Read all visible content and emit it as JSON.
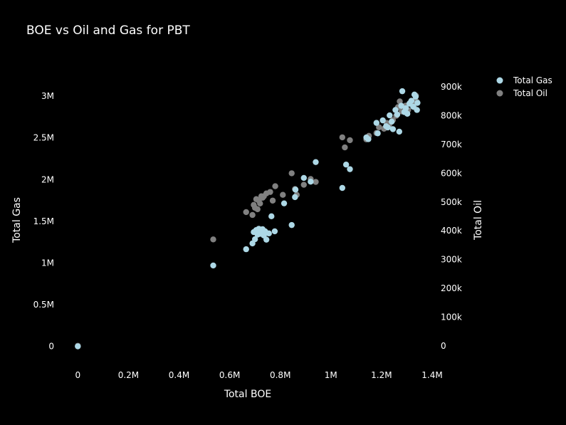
{
  "chart_data": {
    "type": "scatter",
    "title": "BOE vs Oil and Gas for PBT",
    "xlabel": "Total BOE",
    "ylabel": "Total Gas",
    "y2label": "Total Oil",
    "xlim": [
      -60000,
      1400000
    ],
    "ylim": [
      -200000,
      3300000
    ],
    "y2lim": [
      -60000,
      955000
    ],
    "grid": false,
    "legend_position": "top-right",
    "x_ticks": [
      {
        "value": 0,
        "label": "0"
      },
      {
        "value": 200000,
        "label": "0.2M"
      },
      {
        "value": 400000,
        "label": "0.4M"
      },
      {
        "value": 600000,
        "label": "0.6M"
      },
      {
        "value": 800000,
        "label": "0.8M"
      },
      {
        "value": 1000000,
        "label": "1M"
      },
      {
        "value": 1200000,
        "label": "1.2M"
      },
      {
        "value": 1400000,
        "label": "1.4M"
      }
    ],
    "y_ticks": [
      {
        "value": 0,
        "label": "0"
      },
      {
        "value": 500000,
        "label": "0.5M"
      },
      {
        "value": 1000000,
        "label": "1M"
      },
      {
        "value": 1500000,
        "label": "1.5M"
      },
      {
        "value": 2000000,
        "label": "2M"
      },
      {
        "value": 2500000,
        "label": "2.5M"
      },
      {
        "value": 3000000,
        "label": "3M"
      }
    ],
    "y2_ticks": [
      {
        "value": 0,
        "label": "0"
      },
      {
        "value": 100000,
        "label": "100k"
      },
      {
        "value": 200000,
        "label": "200k"
      },
      {
        "value": 300000,
        "label": "300k"
      },
      {
        "value": 400000,
        "label": "400k"
      },
      {
        "value": 500000,
        "label": "500k"
      },
      {
        "value": 600000,
        "label": "600k"
      },
      {
        "value": 700000,
        "label": "700k"
      },
      {
        "value": 800000,
        "label": "800k"
      },
      {
        "value": 900000,
        "label": "900k"
      }
    ],
    "series": [
      {
        "name": "Total Gas",
        "axis": "y",
        "color": "#add8e6",
        "points": [
          [
            0,
            0
          ],
          [
            535000,
            970000
          ],
          [
            665000,
            1165000
          ],
          [
            690000,
            1235000
          ],
          [
            700000,
            1285000
          ],
          [
            695000,
            1370000
          ],
          [
            705000,
            1395000
          ],
          [
            710000,
            1340000
          ],
          [
            715000,
            1410000
          ],
          [
            718000,
            1375000
          ],
          [
            722000,
            1350000
          ],
          [
            726000,
            1385000
          ],
          [
            730000,
            1405000
          ],
          [
            735000,
            1330000
          ],
          [
            740000,
            1380000
          ],
          [
            745000,
            1280000
          ],
          [
            755000,
            1355000
          ],
          [
            765000,
            1560000
          ],
          [
            778000,
            1380000
          ],
          [
            815000,
            1715000
          ],
          [
            845000,
            1455000
          ],
          [
            858000,
            1790000
          ],
          [
            860000,
            1880000
          ],
          [
            893000,
            2020000
          ],
          [
            920000,
            1975000
          ],
          [
            940000,
            2210000
          ],
          [
            1045000,
            1900000
          ],
          [
            1060000,
            2180000
          ],
          [
            1075000,
            2125000
          ],
          [
            1140000,
            2505000
          ],
          [
            1148000,
            2485000
          ],
          [
            1180000,
            2680000
          ],
          [
            1185000,
            2555000
          ],
          [
            1205000,
            2710000
          ],
          [
            1218000,
            2640000
          ],
          [
            1225000,
            2625000
          ],
          [
            1232000,
            2770000
          ],
          [
            1240000,
            2695000
          ],
          [
            1245000,
            2605000
          ],
          [
            1255000,
            2835000
          ],
          [
            1262000,
            2780000
          ],
          [
            1270000,
            2575000
          ],
          [
            1278000,
            2885000
          ],
          [
            1282000,
            3060000
          ],
          [
            1290000,
            2810000
          ],
          [
            1296000,
            2855000
          ],
          [
            1302000,
            2790000
          ],
          [
            1310000,
            2910000
          ],
          [
            1318000,
            2945000
          ],
          [
            1325000,
            2875000
          ],
          [
            1330000,
            3020000
          ],
          [
            1335000,
            2995000
          ],
          [
            1340000,
            2835000
          ],
          [
            1342000,
            2920000
          ]
        ]
      },
      {
        "name": "Total Oil",
        "axis": "y2",
        "color": "#808080",
        "points": [
          [
            0,
            0
          ],
          [
            535000,
            370000
          ],
          [
            665000,
            465000
          ],
          [
            690000,
            455000
          ],
          [
            695000,
            490000
          ],
          [
            700000,
            480000
          ],
          [
            705000,
            510000
          ],
          [
            710000,
            475000
          ],
          [
            715000,
            505000
          ],
          [
            720000,
            495000
          ],
          [
            725000,
            520000
          ],
          [
            730000,
            515000
          ],
          [
            735000,
            520000
          ],
          [
            745000,
            530000
          ],
          [
            760000,
            535000
          ],
          [
            770000,
            505000
          ],
          [
            780000,
            555000
          ],
          [
            810000,
            525000
          ],
          [
            845000,
            600000
          ],
          [
            858000,
            545000
          ],
          [
            865000,
            525000
          ],
          [
            893000,
            560000
          ],
          [
            920000,
            580000
          ],
          [
            940000,
            570000
          ],
          [
            1045000,
            725000
          ],
          [
            1055000,
            690000
          ],
          [
            1075000,
            715000
          ],
          [
            1140000,
            718000
          ],
          [
            1150000,
            730000
          ],
          [
            1180000,
            740000
          ],
          [
            1190000,
            760000
          ],
          [
            1210000,
            755000
          ],
          [
            1220000,
            775000
          ],
          [
            1230000,
            765000
          ],
          [
            1240000,
            780000
          ],
          [
            1245000,
            785000
          ],
          [
            1258000,
            800000
          ],
          [
            1265000,
            830000
          ],
          [
            1272000,
            850000
          ],
          [
            1280000,
            815000
          ],
          [
            1288000,
            825000
          ],
          [
            1295000,
            835000
          ],
          [
            1300000,
            810000
          ],
          [
            1305000,
            820000
          ],
          [
            1312000,
            845000
          ],
          [
            1320000,
            840000
          ],
          [
            1328000,
            830000
          ],
          [
            1332000,
            855000
          ],
          [
            1336000,
            870000
          ],
          [
            1340000,
            848000
          ]
        ]
      }
    ]
  }
}
